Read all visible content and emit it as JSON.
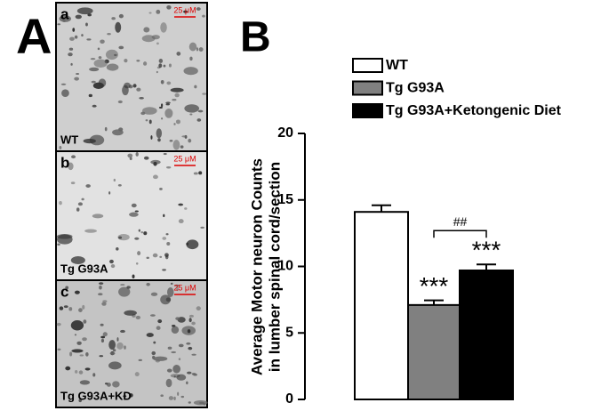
{
  "panel_a": {
    "label": "A",
    "images": [
      {
        "letter": "a",
        "caption": "WT",
        "scale": "25 μM"
      },
      {
        "letter": "b",
        "caption": "Tg G93A",
        "scale": "25 μM"
      },
      {
        "letter": "c",
        "caption": "Tg G93A+KD",
        "scale": "25 μM"
      }
    ]
  },
  "chart_data": {
    "type": "bar",
    "panel_label": "B",
    "y_label": [
      "Average Motor neuron Counts",
      "in lumber spinal cord/section"
    ],
    "categories": [
      "WT",
      "Tg G93A",
      "Tg G93A+Ketongenic Diet"
    ],
    "values": [
      14.1,
      7.1,
      9.7
    ],
    "errors": [
      0.5,
      0.35,
      0.45
    ],
    "colors": [
      "#ffffff",
      "#808080",
      "#000000"
    ],
    "annotations": [
      "***",
      "***",
      "##"
    ],
    "ylim": [
      0,
      20
    ],
    "yticks": [
      0,
      5,
      10,
      15,
      20
    ],
    "legend": "top"
  }
}
